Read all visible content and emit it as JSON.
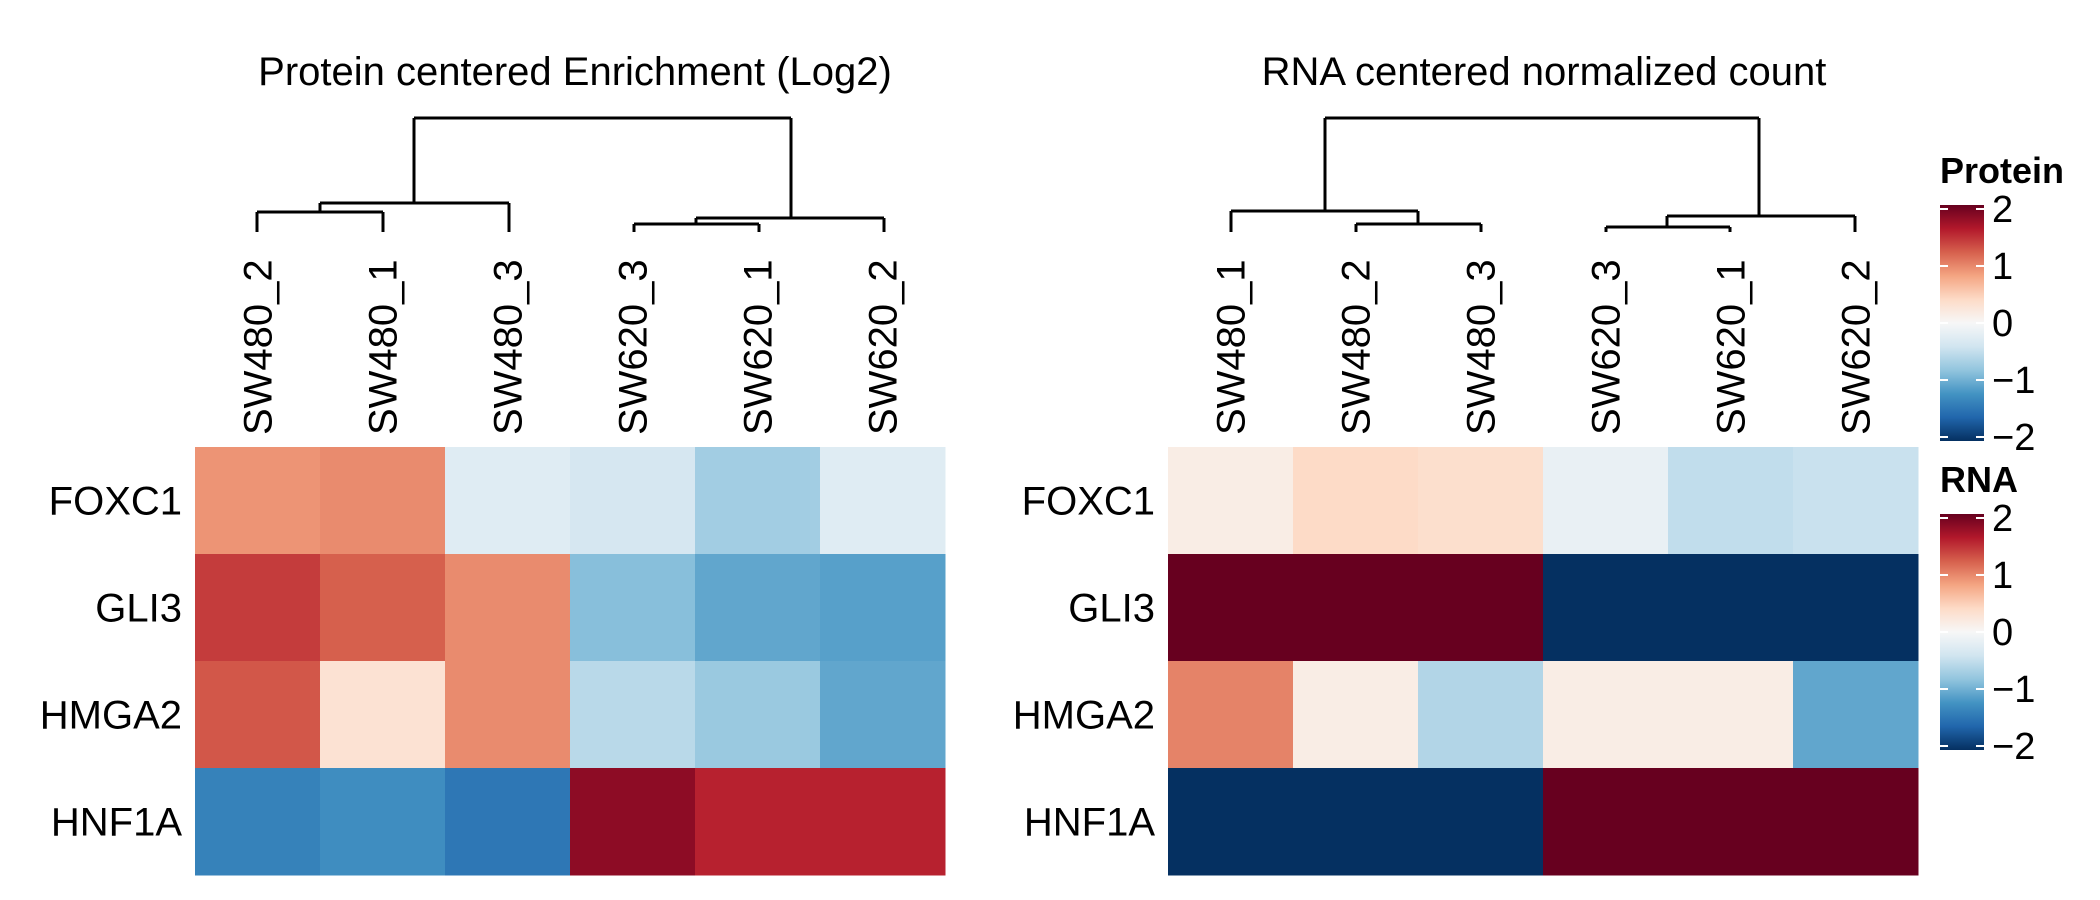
{
  "chart_data": [
    {
      "type": "heatmap",
      "title": "Protein centered Enrichment (Log2)",
      "rows": [
        "FOXC1",
        "GLI3",
        "HMGA2",
        "HNF1A"
      ],
      "columns": [
        "SW480_2",
        "SW480_1",
        "SW480_3",
        "SW620_3",
        "SW620_1",
        "SW620_2"
      ],
      "values": [
        [
          0.9,
          0.95,
          -0.25,
          -0.35,
          -0.7,
          -0.25
        ],
        [
          1.4,
          1.2,
          0.95,
          -0.85,
          -1.05,
          -1.1
        ],
        [
          1.25,
          0.3,
          0.95,
          -0.55,
          -0.75,
          -1.05
        ],
        [
          -1.35,
          -1.25,
          -1.45,
          1.8,
          1.55,
          1.55
        ]
      ],
      "legend": "Protein",
      "column_dendrogram": true
    },
    {
      "type": "heatmap",
      "title": "RNA centered normalized count",
      "rows": [
        "FOXC1",
        "GLI3",
        "HMGA2",
        "HNF1A"
      ],
      "columns": [
        "SW480_1",
        "SW480_2",
        "SW480_3",
        "SW620_3",
        "SW620_1",
        "SW620_2"
      ],
      "values": [
        [
          0.15,
          0.4,
          0.35,
          -0.15,
          -0.5,
          -0.45
        ],
        [
          2.0,
          2.0,
          2.0,
          -2.0,
          -2.0,
          -2.0
        ],
        [
          1.0,
          0.15,
          -0.6,
          0.15,
          0.15,
          -1.05
        ],
        [
          -2.0,
          -2.0,
          -2.0,
          2.0,
          2.0,
          2.0
        ]
      ],
      "legend": "RNA",
      "column_dendrogram": true
    }
  ],
  "legends": [
    {
      "title": "Protein",
      "ticks": [
        "2",
        "1",
        "0",
        "−1",
        "−2"
      ]
    },
    {
      "title": "RNA",
      "ticks": [
        "2",
        "1",
        "0",
        "−1",
        "−2"
      ]
    }
  ],
  "colors": {
    "scale": [
      "#053061",
      "#2166ac",
      "#4393c3",
      "#92c5de",
      "#d1e5f0",
      "#f7f7f7",
      "#fddbc7",
      "#f4a582",
      "#d6604d",
      "#b2182b",
      "#67001f"
    ],
    "domain_min": -2,
    "domain_max": 2
  }
}
